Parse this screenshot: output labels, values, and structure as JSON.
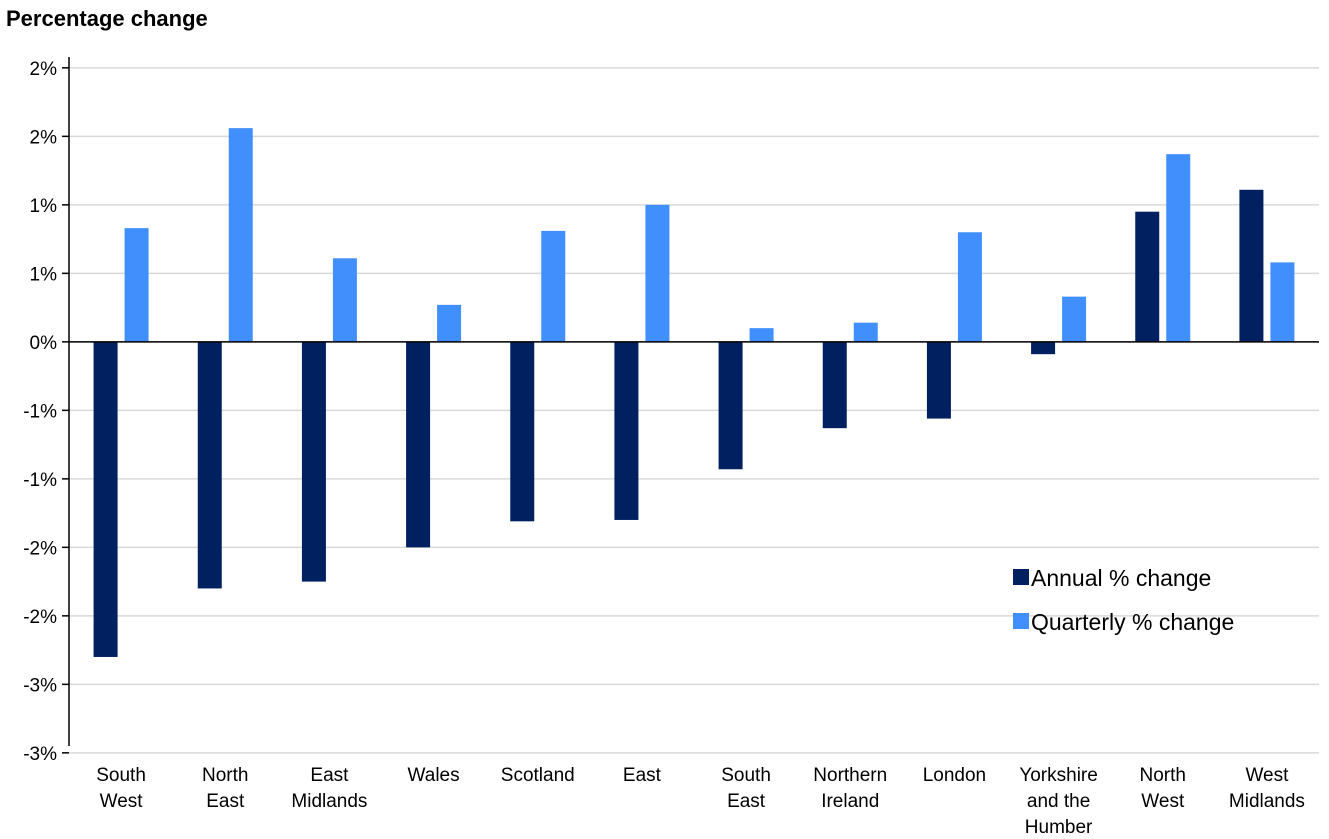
{
  "chart_data": {
    "type": "bar",
    "title": "Percentage change",
    "ylim": [
      -2.95,
      2.05
    ],
    "y_tick_values": [
      2.0,
      1.5,
      1.0,
      0.5,
      0.0,
      -0.5,
      -1.0,
      -1.5,
      -2.0,
      -2.5,
      -3.0
    ],
    "y_tick_labels": [
      "2%",
      "2%",
      "1%",
      "1%",
      "0%",
      "-1%",
      "-1%",
      "-2%",
      "-2%",
      "-3%",
      "-3%"
    ],
    "grid": true,
    "legend_position": "right",
    "categories": [
      [
        "South",
        "West"
      ],
      [
        "North",
        "East"
      ],
      [
        "East",
        "Midlands"
      ],
      [
        "Wales"
      ],
      [
        "Scotland"
      ],
      [
        "East"
      ],
      [
        "South",
        "East"
      ],
      [
        "Northern",
        "Ireland"
      ],
      [
        "London"
      ],
      [
        "Yorkshire",
        "and the",
        "Humber"
      ],
      [
        "North",
        "West"
      ],
      [
        "West",
        "Midlands"
      ]
    ],
    "series": [
      {
        "name": "Annual % change",
        "color": "#002060",
        "values": [
          -2.3,
          -1.8,
          -1.75,
          -1.5,
          -1.31,
          -1.3,
          -0.93,
          -0.63,
          -0.56,
          -0.09,
          0.95,
          1.11
        ]
      },
      {
        "name": "Quarterly % change",
        "color": "#418FFC",
        "values": [
          0.83,
          1.56,
          0.61,
          0.27,
          0.81,
          1.0,
          0.1,
          0.14,
          0.8,
          0.33,
          1.37,
          0.58
        ]
      }
    ]
  }
}
